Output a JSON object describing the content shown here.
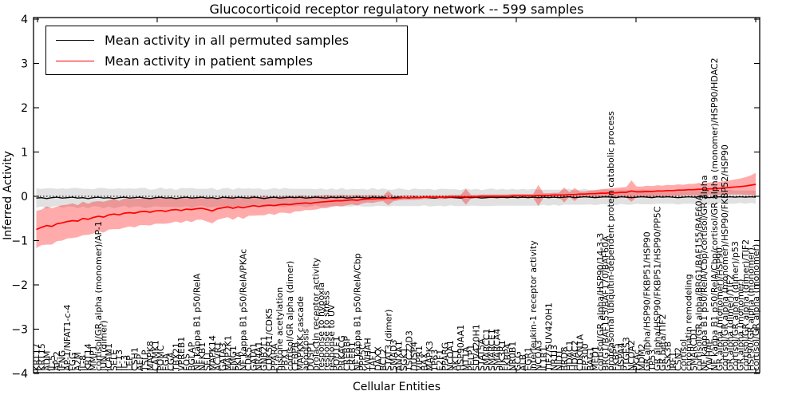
{
  "title": "Glucocorticoid receptor regulatory network -- 599 samples",
  "legend": {
    "permuted": "Mean activity in all permuted samples",
    "patient": "Mean activity in patient samples"
  },
  "colors": {
    "patient_line": "#ff0000",
    "permuted_line": "#000000",
    "patient_band": "#ff0000",
    "permuted_band": "#dcdcdc",
    "zero_line": "#000000"
  },
  "chart_data": {
    "type": "line",
    "title": "Glucocorticoid receptor regulatory network -- 599 samples",
    "xlabel": "Cellular Entities",
    "ylabel": "Inferred Activity",
    "ylim": [
      -4,
      4
    ],
    "yticks": [
      -4,
      -3,
      -2,
      -1,
      0,
      1,
      2,
      3,
      4
    ],
    "grid": false,
    "zero_line_dotted": true,
    "legend_position": "upper left",
    "categories": [
      "KRT17",
      "KRT15",
      "ADM",
      "IL-5",
      "AP-2",
      "IFNG",
      "AP-1/NFAT1-c-4",
      "FGG",
      "A2M",
      "IL-8",
      "KRT14",
      "MMP1",
      "cortisol/GR alpha (monomer)/AP-1",
      "JUN (dimer)",
      "ICAM1",
      "SELE",
      "IL-13",
      "IL-3",
      "LEP",
      "CSH1",
      "AEP",
      "TSLP",
      "MAPK8",
      "CAMK1",
      "POMC",
      "FGA",
      "CGA",
      "TBX21",
      "VPREB1",
      "FOS",
      "BGLAP",
      "NF kappa B1 p50/RelA",
      "NFKB1",
      "SELL",
      "MAPK14",
      "ACVR1",
      "GATA3",
      "MAP2K1",
      "EMG1",
      "PKIA",
      "NF kappa B1 p50/RelA/PKAc",
      "CDK5",
      "GATA1",
      "NR4A1",
      "GNB2L1",
      "CDK5R1/CDK5",
      "PPARA",
      "histone acetylation",
      "PBX1",
      "cortisol/GR alpha (dimer)",
      "CEBPB",
      "MAPKKK cascade",
      "apoptosis",
      "DUSP1",
      "prolactin receptor activity",
      "response to hypoxia",
      "response to stress",
      "response to UV",
      "POU1F1",
      "PRKACG",
      "CREBBP",
      "CREB1",
      "NF kappa B1 p50/RelA/Cbp",
      "PPP5C",
      "YWHAH",
      "TAF1",
      "DAXX",
      "BCL2",
      "STAT3 (dimer)",
      "SMAD3",
      "ANXA1",
      "SGK1",
      "TSC22D3",
      "DUSP4",
      "VIPR1",
      "BAX",
      "MAPK3",
      "TP63",
      "E2F1",
      "PPARG",
      "NCOA1",
      "AKT1",
      "HSP90AA1",
      "MT1A",
      "PELP1",
      "SUV420H1",
      "STAT5A",
      "SMARCC1",
      "SMARCE1",
      "SMARCA4",
      "PIK3R1",
      "FKBP4",
      "NR0B1",
      "GCG",
      "ALB",
      "EGR1",
      "interleukin-1 receptor activity",
      "NCOA3",
      "IL1R1",
      "TIF2/SUV420H1",
      "NR1I3",
      "NID1",
      "BRD8",
      "HDAC1",
      "HDAC2",
      "CDKN1A",
      "EP300",
      "BAG1",
      "MED1",
      "cortisol/GR alpha/HSP90/14-3-3",
      "BRG1/BAF155/BAF170/BAF60A",
      "proteasomal ubiquitin-dependent protein catabolic process",
      "FKBP5",
      "HSPA4",
      "PTGES3",
      "NCOA2",
      "PKAc",
      "MDM2",
      "GR alpha/HSP90/FKBP51/HSP90",
      "TP53",
      "GR alpha/HSP90/FKBP51/HSP90/PP5C",
      "GR beta/TIF2",
      "GSK3B",
      "IRF1",
      "CSN2",
      "cortisol",
      "chromatin remodeling",
      "SMARCD1",
      "cortisol/GR alpha/BRG1/BAF155/BAF60A",
      "NF kappa B1 p50/RelA/Cbp/cortisol/GR alpha",
      "YWHAE",
      "NF kappa B1 p50/RelA/Cbp/cortisol/GR alpha (monomer)/HSP90/HDAC2",
      "GR alpha (monomer)/HSP90",
      "cortisol/GR alpha (monomer)/HSP90/FKBP52/HSP90",
      "GR alpha (dimer)/TIF2",
      "cortisol/GR alpha (dimer)/p53",
      "GR alpha (monomer)",
      "cortisol/GR alpha (dimer)/TIF2",
      "HSP90/GR alpha (monomer)",
      "cortisol/GR alpha (monomer)"
    ],
    "series": [
      {
        "name": "Mean activity in all permuted samples",
        "color": "#000000",
        "values": [
          -0.04,
          -0.03,
          -0.05,
          -0.03,
          -0.02,
          -0.04,
          -0.03,
          -0.02,
          -0.04,
          -0.03,
          -0.05,
          -0.03,
          -0.02,
          -0.04,
          -0.03,
          -0.05,
          -0.03,
          -0.02,
          -0.04,
          -0.03,
          -0.02,
          -0.04,
          -0.05,
          -0.03,
          -0.02,
          -0.04,
          -0.03,
          -0.05,
          -0.03,
          -0.02,
          -0.04,
          -0.03,
          -0.02,
          -0.04,
          -0.03,
          -0.05,
          -0.02,
          -0.03,
          -0.04,
          -0.02,
          -0.03,
          -0.04,
          -0.02,
          -0.03,
          -0.05,
          -0.03,
          -0.02,
          -0.04,
          -0.03,
          -0.02,
          -0.03,
          -0.02,
          -0.04,
          -0.03,
          -0.02,
          -0.03,
          -0.04,
          -0.02,
          -0.03,
          -0.02,
          -0.04,
          -0.03,
          -0.02,
          -0.03,
          -0.04,
          -0.02,
          -0.03,
          -0.02,
          -0.04,
          -0.03,
          -0.02,
          -0.03,
          -0.04,
          -0.02,
          -0.03,
          -0.02,
          -0.03,
          -0.04,
          -0.02,
          -0.03,
          -0.02,
          -0.03,
          -0.04,
          -0.02,
          -0.03,
          -0.02,
          -0.04,
          -0.03,
          -0.02,
          -0.03,
          -0.02,
          -0.03,
          -0.02,
          -0.03,
          -0.02,
          -0.03,
          -0.02,
          -0.03,
          -0.02,
          -0.03,
          -0.02,
          -0.03,
          -0.02,
          -0.01,
          -0.03,
          -0.02,
          -0.01,
          -0.02,
          -0.03,
          -0.02,
          -0.01,
          -0.02,
          -0.03,
          -0.01,
          -0.02,
          -0.03,
          -0.02,
          -0.01,
          -0.02,
          -0.03,
          -0.01,
          -0.02,
          -0.01,
          -0.02,
          -0.03,
          -0.02,
          -0.01,
          -0.02,
          -0.01,
          -0.02,
          -0.03,
          -0.02,
          -0.01,
          -0.02,
          -0.01,
          -0.02,
          -0.01,
          -0.02,
          -0.01,
          -0.02
        ],
        "band_half_width": [
          0.22,
          0.2,
          0.23,
          0.21,
          0.19,
          0.22,
          0.2,
          0.21,
          0.23,
          0.2,
          0.22,
          0.19,
          0.21,
          0.23,
          0.2,
          0.22,
          0.21,
          0.19,
          0.22,
          0.2,
          0.21,
          0.23,
          0.2,
          0.19,
          0.22,
          0.2,
          0.21,
          0.19,
          0.22,
          0.2,
          0.23,
          0.2,
          0.19,
          0.21,
          0.22,
          0.19,
          0.2,
          0.22,
          0.19,
          0.21,
          0.2,
          0.22,
          0.19,
          0.21,
          0.2,
          0.19,
          0.21,
          0.2,
          0.22,
          0.19,
          0.2,
          0.19,
          0.21,
          0.2,
          0.18,
          0.21,
          0.19,
          0.2,
          0.18,
          0.21,
          0.19,
          0.2,
          0.18,
          0.2,
          0.19,
          0.21,
          0.18,
          0.2,
          0.19,
          0.18,
          0.2,
          0.19,
          0.18,
          0.2,
          0.19,
          0.18,
          0.2,
          0.18,
          0.19,
          0.2,
          0.18,
          0.19,
          0.18,
          0.2,
          0.18,
          0.19,
          0.18,
          0.19,
          0.2,
          0.18,
          0.19,
          0.18,
          0.19,
          0.18,
          0.19,
          0.18,
          0.19,
          0.18,
          0.17,
          0.18,
          0.17,
          0.18,
          0.17,
          0.18,
          0.16,
          0.17,
          0.18,
          0.16,
          0.17,
          0.16,
          0.17,
          0.16,
          0.17,
          0.16,
          0.17,
          0.16,
          0.15,
          0.17,
          0.16,
          0.15,
          0.16,
          0.15,
          0.16,
          0.15,
          0.16,
          0.15,
          0.16,
          0.15,
          0.16,
          0.15,
          0.16,
          0.15,
          0.14,
          0.15,
          0.16,
          0.15,
          0.14,
          0.15,
          0.14,
          0.15
        ]
      },
      {
        "name": "Mean activity in patient samples",
        "color": "#ff0000",
        "values": [
          -0.75,
          -0.7,
          -0.66,
          -0.68,
          -0.62,
          -0.6,
          -0.57,
          -0.55,
          -0.56,
          -0.5,
          -0.52,
          -0.48,
          -0.45,
          -0.47,
          -0.42,
          -0.4,
          -0.42,
          -0.38,
          -0.37,
          -0.38,
          -0.35,
          -0.34,
          -0.36,
          -0.33,
          -0.32,
          -0.34,
          -0.31,
          -0.3,
          -0.32,
          -0.29,
          -0.3,
          -0.28,
          -0.27,
          -0.3,
          -0.33,
          -0.28,
          -0.26,
          -0.24,
          -0.27,
          -0.24,
          -0.26,
          -0.23,
          -0.21,
          -0.23,
          -0.21,
          -0.2,
          -0.21,
          -0.19,
          -0.18,
          -0.19,
          -0.17,
          -0.16,
          -0.15,
          -0.16,
          -0.14,
          -0.13,
          -0.12,
          -0.11,
          -0.1,
          -0.1,
          -0.09,
          -0.08,
          -0.09,
          -0.07,
          -0.06,
          -0.06,
          -0.05,
          -0.05,
          -0.04,
          -0.05,
          -0.04,
          -0.03,
          -0.03,
          -0.03,
          -0.03,
          -0.02,
          -0.02,
          -0.02,
          -0.02,
          -0.02,
          -0.01,
          -0.01,
          -0.01,
          -0.01,
          -0.01,
          -0.01,
          0.0,
          0.0,
          0.0,
          0.0,
          0.0,
          0.0,
          0.01,
          0.01,
          0.01,
          0.01,
          0.01,
          0.02,
          0.02,
          0.02,
          0.03,
          0.03,
          0.03,
          0.04,
          0.04,
          0.05,
          0.05,
          0.06,
          0.06,
          0.07,
          0.07,
          0.08,
          0.08,
          0.09,
          0.09,
          0.12,
          0.1,
          0.1,
          0.11,
          0.11,
          0.12,
          0.12,
          0.13,
          0.13,
          0.14,
          0.14,
          0.15,
          0.15,
          0.16,
          0.16,
          0.17,
          0.17,
          0.18,
          0.19,
          0.2,
          0.21,
          0.22,
          0.23,
          0.25,
          0.27
        ],
        "band_half_width": [
          0.42,
          0.4,
          0.43,
          0.41,
          0.39,
          0.4,
          0.38,
          0.39,
          0.36,
          0.38,
          0.35,
          0.36,
          0.34,
          0.35,
          0.33,
          0.34,
          0.32,
          0.33,
          0.31,
          0.32,
          0.3,
          0.31,
          0.3,
          0.29,
          0.3,
          0.28,
          0.29,
          0.27,
          0.28,
          0.26,
          0.28,
          0.25,
          0.26,
          0.27,
          0.28,
          0.25,
          0.24,
          0.23,
          0.26,
          0.22,
          0.25,
          0.21,
          0.23,
          0.2,
          0.22,
          0.19,
          0.21,
          0.18,
          0.19,
          0.2,
          0.17,
          0.18,
          0.16,
          0.15,
          0.16,
          0.14,
          0.15,
          0.13,
          0.12,
          0.13,
          0.11,
          0.1,
          0.12,
          0.09,
          0.08,
          0.09,
          0.07,
          0.06,
          0.16,
          0.06,
          0.05,
          0.05,
          0.05,
          0.05,
          0.04,
          0.04,
          0.04,
          0.04,
          0.04,
          0.04,
          0.04,
          0.04,
          0.04,
          0.18,
          0.04,
          0.04,
          0.04,
          0.04,
          0.04,
          0.04,
          0.04,
          0.04,
          0.04,
          0.04,
          0.04,
          0.04,
          0.04,
          0.24,
          0.05,
          0.05,
          0.05,
          0.05,
          0.17,
          0.05,
          0.15,
          0.06,
          0.06,
          0.07,
          0.08,
          0.09,
          0.1,
          0.1,
          0.11,
          0.11,
          0.12,
          0.24,
          0.12,
          0.12,
          0.13,
          0.12,
          0.13,
          0.12,
          0.13,
          0.12,
          0.13,
          0.12,
          0.13,
          0.13,
          0.14,
          0.13,
          0.14,
          0.14,
          0.15,
          0.15,
          0.16,
          0.17,
          0.18,
          0.2,
          0.22,
          0.26
        ]
      }
    ]
  }
}
